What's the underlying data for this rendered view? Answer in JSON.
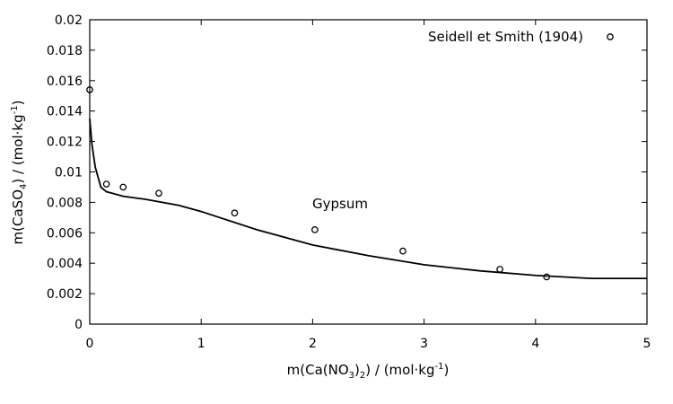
{
  "chart_data": {
    "type": "scatter",
    "xlabel": {
      "prefix": "m(Ca(NO",
      "sub": "3",
      "mid": ")",
      "sub2": "2",
      "suffix": ") / (mol·kg",
      "sup": "-1",
      "end": ")"
    },
    "ylabel": {
      "prefix": "m(CaSO",
      "sub": "4",
      "suffix": ") / (mol·kg",
      "sup": "-1",
      "end": ")"
    },
    "xlim": [
      0,
      5
    ],
    "ylim": [
      0,
      0.02
    ],
    "x_ticks": [
      "0",
      "1",
      "2",
      "3",
      "4",
      "5"
    ],
    "y_ticks": [
      "0",
      "0.002",
      "0.004",
      "0.006",
      "0.008",
      "0.01",
      "0.012",
      "0.014",
      "0.016",
      "0.018",
      "0.02"
    ],
    "legend": {
      "label": "Seidell et Smith (1904)",
      "placement": "top-right"
    },
    "annotation": "Gypsum",
    "series": [
      {
        "name": "Seidell et Smith (1904)",
        "kind": "scatter",
        "x": [
          0.0,
          0.15,
          0.3,
          0.62,
          1.3,
          2.02,
          2.81,
          3.68,
          4.1
        ],
        "y": [
          0.0154,
          0.0092,
          0.009,
          0.0086,
          0.0073,
          0.0062,
          0.0048,
          0.0036,
          0.0031
        ]
      },
      {
        "kind": "line",
        "x": [
          0.0,
          0.02,
          0.05,
          0.1,
          0.15,
          0.3,
          0.5,
          0.8,
          1.0,
          1.5,
          2.0,
          2.5,
          3.0,
          3.5,
          4.0,
          4.5,
          5.0
        ],
        "y": [
          0.0135,
          0.0118,
          0.0103,
          0.009,
          0.0087,
          0.0084,
          0.0082,
          0.0078,
          0.0074,
          0.0062,
          0.0052,
          0.0045,
          0.0039,
          0.0035,
          0.0032,
          0.003,
          0.003
        ]
      }
    ]
  }
}
